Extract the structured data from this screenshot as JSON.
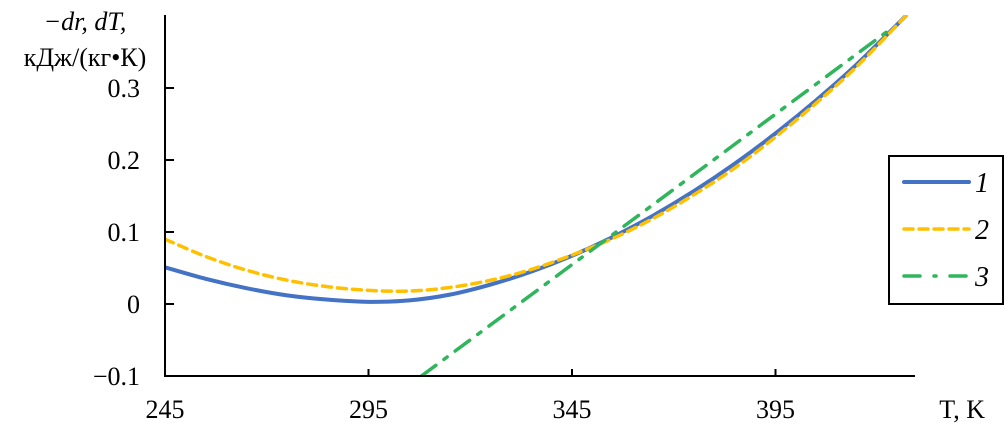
{
  "chart_data": {
    "type": "line",
    "ylabel_line1": "−dr, dT,",
    "ylabel_line2": "кДж/(кг•К)",
    "xlabel": "T, K",
    "xlim": [
      245,
      427
    ],
    "ylim": [
      -0.1,
      0.4
    ],
    "xticks": [
      245,
      295,
      345,
      395
    ],
    "yticks": [
      -0.1,
      0,
      0.1,
      0.2,
      0.3
    ],
    "ytick_labels": [
      "−0.1",
      "0",
      "0.1",
      "0.2",
      "0.3"
    ],
    "grid": false,
    "legend_position": "right",
    "series": [
      {
        "name": "1",
        "color": "#4472c4",
        "style": "solid",
        "x": [
          245,
          255,
          265,
          275,
          285,
          295,
          305,
          315,
          325,
          335,
          345,
          355,
          365,
          375,
          385,
          395,
          405,
          415,
          427
        ],
        "y": [
          0.051,
          0.035,
          0.022,
          0.012,
          0.006,
          0.003,
          0.005,
          0.013,
          0.027,
          0.045,
          0.067,
          0.093,
          0.123,
          0.157,
          0.195,
          0.237,
          0.283,
          0.333,
          0.4
        ]
      },
      {
        "name": "2",
        "color": "#ffc000",
        "style": "dashed",
        "x": [
          245,
          255,
          265,
          275,
          285,
          295,
          305,
          315,
          325,
          335,
          345,
          355,
          365,
          375,
          385,
          395,
          405,
          415,
          427
        ],
        "y": [
          0.09,
          0.066,
          0.047,
          0.033,
          0.024,
          0.019,
          0.018,
          0.023,
          0.033,
          0.048,
          0.068,
          0.091,
          0.119,
          0.152,
          0.189,
          0.232,
          0.279,
          0.33,
          0.4
        ]
      },
      {
        "name": "3",
        "color": "#2fb55b",
        "style": "dashdot",
        "x": [
          308,
          424
        ],
        "y": [
          -0.1,
          0.385
        ]
      }
    ]
  }
}
